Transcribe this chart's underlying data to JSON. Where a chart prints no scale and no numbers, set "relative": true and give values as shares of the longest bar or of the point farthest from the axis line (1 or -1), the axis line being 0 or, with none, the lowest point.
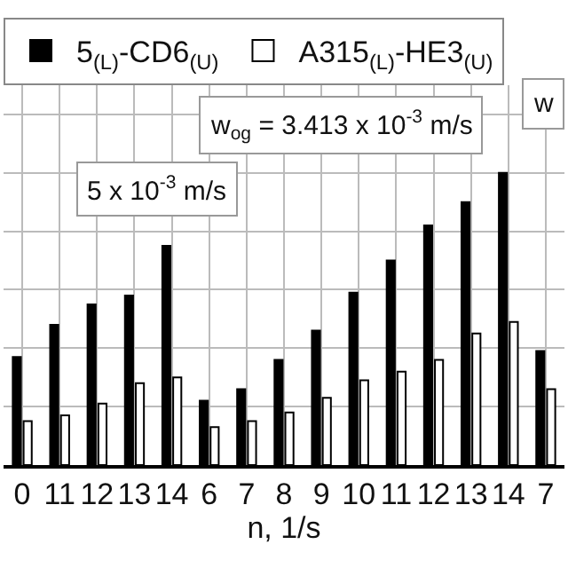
{
  "chart_data": {
    "type": "bar",
    "relative": true,
    "xlabel": "n, 1/s",
    "categories": [
      "0",
      "11",
      "12",
      "13",
      "14",
      "6",
      "7",
      "8",
      "9",
      "10",
      "11",
      "12",
      "13",
      "14",
      "7"
    ],
    "series": [
      {
        "name": "5$_{(L)}$-CD6$_{(U)}$",
        "color": "#000000",
        "values": [
          0.37,
          0.48,
          0.55,
          0.58,
          0.75,
          0.22,
          0.26,
          0.36,
          0.46,
          0.59,
          0.7,
          0.82,
          0.9,
          1,
          0.39
        ]
      },
      {
        "name": "A315$_{(L)}$-HE3$_{(U)}$",
        "color": "#ffffff",
        "values": [
          0.15,
          0.17,
          0.21,
          0.28,
          0.3,
          0.13,
          0.15,
          0.18,
          0.23,
          0.29,
          0.32,
          0.36,
          0.45,
          0.49,
          0.26
        ]
      }
    ],
    "annotations": [
      "w$_{og}$ = 3.413 x 10$^{-3}$ m/s",
      "5 x 10$^{-3}$ m/s",
      "w"
    ],
    "legend": "top",
    "grid": true
  }
}
